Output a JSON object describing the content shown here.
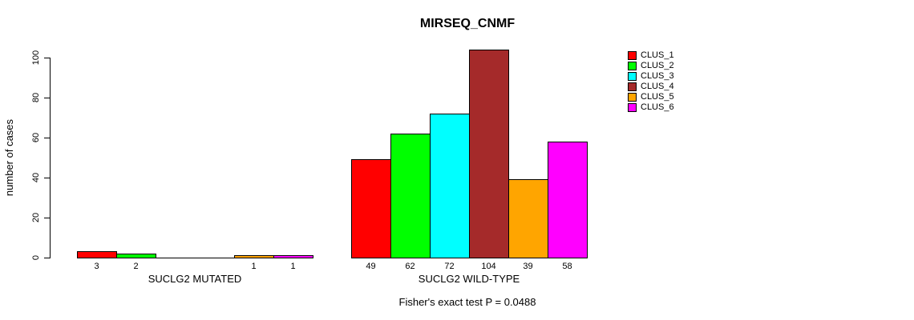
{
  "title": "MIRSEQ_CNMF",
  "footer": "Fisher's exact test P = 0.0488",
  "colors": {
    "foreground": "#000000",
    "background": "#ffffff"
  },
  "chart_data": {
    "type": "bar",
    "title": "MIRSEQ_CNMF",
    "xlabel": "",
    "ylabel": "number of cases",
    "ylim": [
      0,
      100
    ],
    "yticks": [
      0,
      20,
      40,
      60,
      80,
      100
    ],
    "grid": false,
    "legend_position": "right",
    "annotation": "Fisher's exact test P = 0.0488",
    "series": [
      {
        "name": "CLUS_1",
        "color": "#FF0000"
      },
      {
        "name": "CLUS_2",
        "color": "#00FF00"
      },
      {
        "name": "CLUS_3",
        "color": "#00FFFF"
      },
      {
        "name": "CLUS_4",
        "color": "#A52A2A"
      },
      {
        "name": "CLUS_5",
        "color": "#FFA500"
      },
      {
        "name": "CLUS_6",
        "color": "#FF00FF"
      }
    ],
    "groups": [
      {
        "label": "SUCLG2 MUTATED",
        "values": [
          3,
          2,
          0,
          0,
          1,
          1
        ],
        "bar_labels": [
          "3",
          "2",
          "",
          "",
          "1",
          "1"
        ]
      },
      {
        "label": "SUCLG2 WILD-TYPE",
        "values": [
          49,
          62,
          72,
          104,
          39,
          58
        ],
        "bar_labels": [
          "49",
          "62",
          "72",
          "104",
          "39",
          "58"
        ]
      }
    ]
  }
}
